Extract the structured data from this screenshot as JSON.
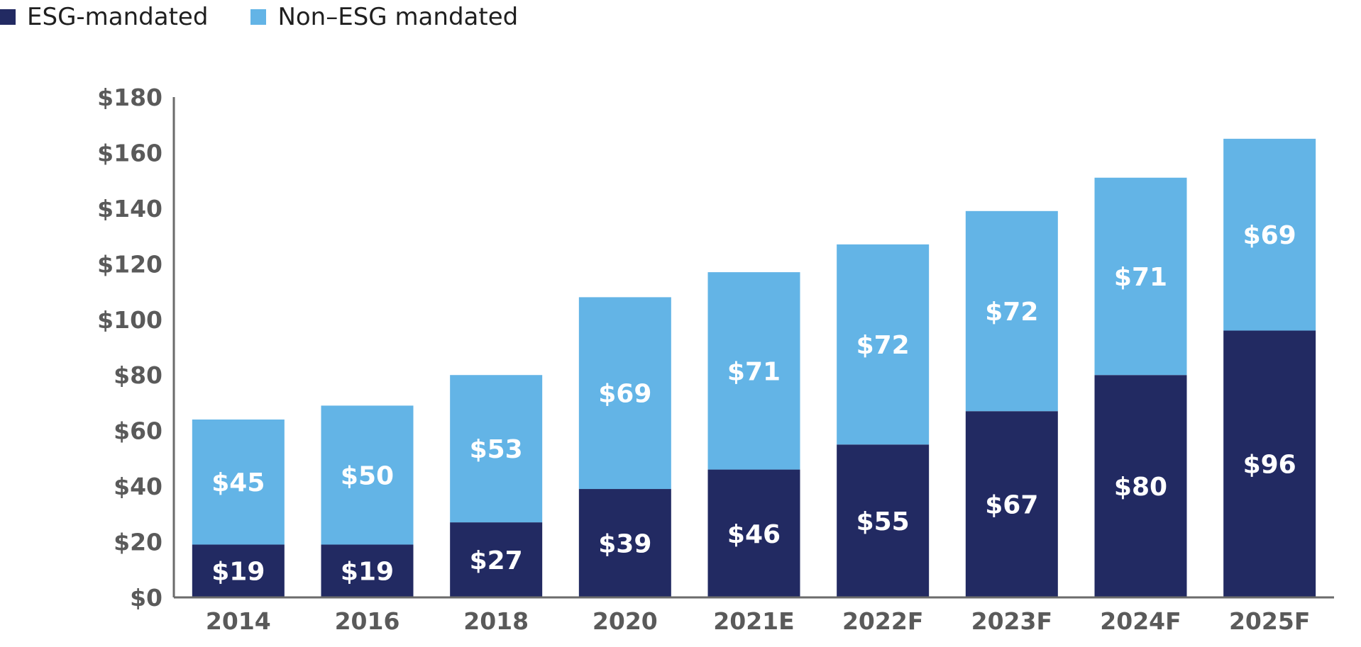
{
  "legend": {
    "items": [
      {
        "label": "ESG-mandated",
        "color": "#222a62"
      },
      {
        "label": "Non–ESG mandated",
        "color": "#63b4e6"
      }
    ]
  },
  "chart_data": {
    "type": "bar",
    "stacked": true,
    "categories": [
      "2014",
      "2016",
      "2018",
      "2020",
      "2021E",
      "2022F",
      "2023F",
      "2024F",
      "2025F"
    ],
    "series": [
      {
        "name": "ESG-mandated",
        "color": "#222a62",
        "values": [
          19,
          19,
          27,
          39,
          46,
          55,
          67,
          80,
          96
        ],
        "labels": [
          "$19",
          "$19",
          "$27",
          "$39",
          "$46",
          "$55",
          "$67",
          "$80",
          "$96"
        ]
      },
      {
        "name": "Non–ESG mandated",
        "color": "#63b4e6",
        "values": [
          45,
          50,
          53,
          69,
          71,
          72,
          72,
          71,
          69
        ],
        "labels": [
          "$45",
          "$50",
          "$53",
          "$69",
          "$71",
          "$72",
          "$72",
          "$71",
          "$69"
        ]
      }
    ],
    "ylim": [
      0,
      180
    ],
    "yticks": [
      0,
      20,
      40,
      60,
      80,
      100,
      120,
      140,
      160,
      180
    ],
    "ytick_labels": [
      "$0",
      "$20",
      "$40",
      "$60",
      "$80",
      "$100",
      "$120",
      "$140",
      "$160",
      "$180"
    ],
    "grid": false,
    "legend_position": "top-left",
    "axis_color": "#6b6b6b"
  }
}
